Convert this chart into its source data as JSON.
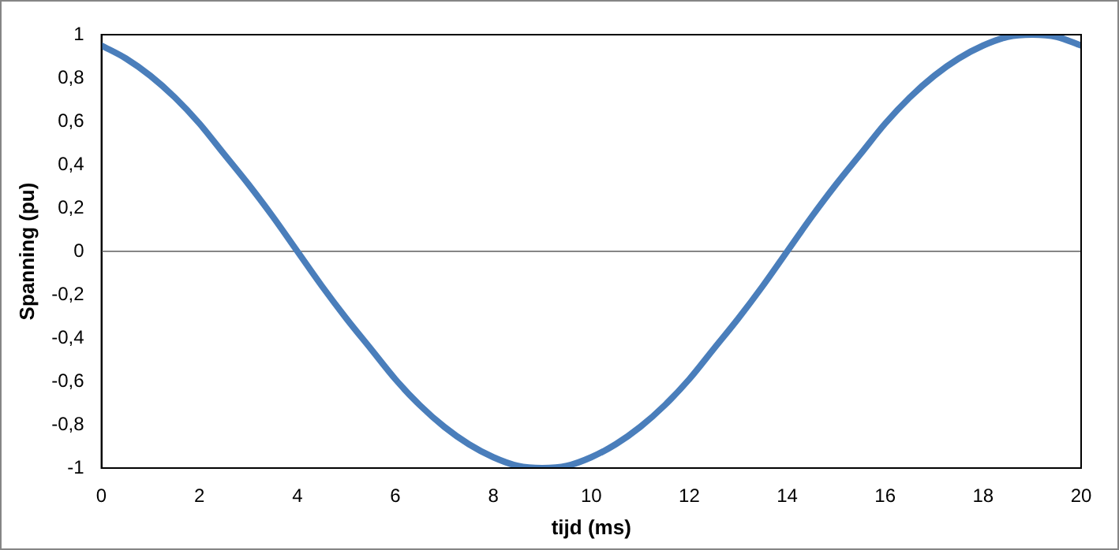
{
  "chart_data": {
    "type": "line",
    "xlabel": "tijd (ms)",
    "ylabel": "Spanning (pu)",
    "x": [
      0,
      0.5,
      1,
      1.5,
      2,
      2.5,
      3,
      3.5,
      4,
      4.5,
      5,
      5.5,
      6,
      6.5,
      7,
      7.5,
      8,
      8.5,
      9,
      9.5,
      10,
      10.5,
      11,
      11.5,
      12,
      12.5,
      13,
      13.5,
      14,
      14.5,
      15,
      15.5,
      16,
      16.5,
      17,
      17.5,
      18,
      18.5,
      19,
      19.5,
      20
    ],
    "series": [
      {
        "color": "#4a7ebb",
        "values": [
          0.95,
          0.89,
          0.81,
          0.71,
          0.59,
          0.45,
          0.31,
          0.16,
          0,
          -0.16,
          -0.31,
          -0.45,
          -0.59,
          -0.71,
          -0.81,
          -0.89,
          -0.95,
          -0.99,
          -1,
          -0.99,
          -0.95,
          -0.89,
          -0.81,
          -0.71,
          -0.59,
          -0.45,
          -0.31,
          -0.16,
          0,
          0.16,
          0.31,
          0.45,
          0.59,
          0.71,
          0.81,
          0.89,
          0.95,
          0.99,
          1,
          0.99,
          0.95
        ]
      }
    ],
    "xlim": [
      0,
      20
    ],
    "xticks": [
      0,
      2,
      4,
      6,
      8,
      10,
      12,
      14,
      16,
      18,
      20
    ],
    "ylim": [
      -1,
      1
    ],
    "yticks": [
      -1,
      {
        "value": -0.8,
        "label": "-0,8"
      },
      {
        "value": -0.6,
        "label": "-0,6"
      },
      {
        "value": -0.4,
        "label": "-0,4"
      },
      {
        "value": -0.2,
        "label": "-0,2"
      },
      0,
      {
        "value": 0.2,
        "label": "0,2"
      },
      {
        "value": 0.4,
        "label": "0,4"
      },
      {
        "value": 0.6,
        "label": "0,6"
      },
      {
        "value": 0.8,
        "label": "0,8"
      },
      1
    ],
    "ref_lines": [
      {
        "axis": "y",
        "value": 0,
        "color": "#868686"
      }
    ],
    "grid": false,
    "legend": false,
    "marker": "none",
    "line_style": "solid"
  }
}
